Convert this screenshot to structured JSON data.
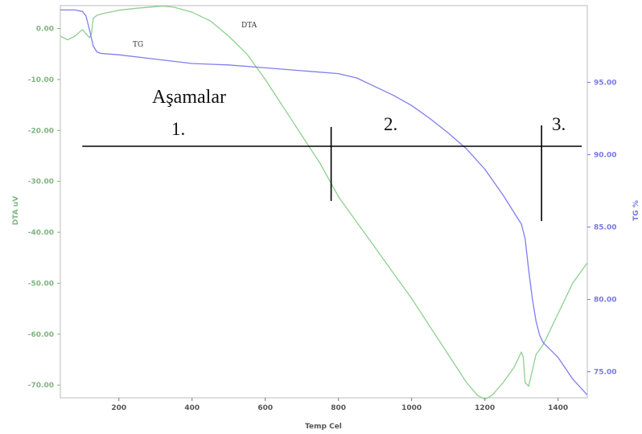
{
  "chart_data": {
    "type": "line",
    "title": "",
    "xlabel": "Temp Cel",
    "ylabel_left": "DTA uV",
    "ylabel_right": "TG %",
    "xlim": [
      40,
      1480
    ],
    "ylim_left": [
      -72.5,
      4.5
    ],
    "ylim_right": [
      73.2,
      100.3
    ],
    "x_ticks": [
      "200",
      "400",
      "600",
      "800",
      "1000",
      "1200",
      "1400"
    ],
    "y_left_ticks": [
      "0.00",
      "-10.00",
      "-20.00",
      "-30.00",
      "-40.00",
      "-50.00",
      "-60.00",
      "-70.00"
    ],
    "y_right_ticks": [
      "95.00",
      "90.00",
      "85.00",
      "80.00",
      "75.00"
    ],
    "series": [
      {
        "name": "DTA",
        "axis": "left",
        "color": "#8fcf8f",
        "x": [
          40,
          60,
          80,
          100,
          110,
          120,
          125,
          130,
          140,
          160,
          200,
          250,
          300,
          320,
          350,
          400,
          450,
          500,
          550,
          600,
          650,
          700,
          750,
          800,
          850,
          900,
          950,
          1000,
          1050,
          1100,
          1150,
          1180,
          1200,
          1220,
          1250,
          1280,
          1300,
          1305,
          1310,
          1320,
          1330,
          1340,
          1360,
          1400,
          1440,
          1480
        ],
        "y": [
          -1.5,
          -2.2,
          -1.5,
          -0.2,
          -1.0,
          -1.8,
          -1.0,
          2.0,
          2.6,
          3.0,
          3.6,
          4.0,
          4.3,
          4.4,
          4.2,
          3.2,
          1.5,
          -1.5,
          -5.0,
          -10.0,
          -15.5,
          -21.0,
          -26.5,
          -33.0,
          -38.0,
          -43.0,
          -48.0,
          -53.0,
          -58.5,
          -64.0,
          -69.5,
          -72.0,
          -72.8,
          -72.0,
          -69.5,
          -66.5,
          -63.5,
          -64.5,
          -69.5,
          -70.2,
          -67.0,
          -64.0,
          -62.0,
          -56.0,
          -50.0,
          -46.0
        ]
      },
      {
        "name": "TG",
        "axis": "right",
        "color": "#7e7ef0",
        "x": [
          40,
          80,
          100,
          110,
          120,
          130,
          140,
          150,
          200,
          300,
          400,
          500,
          600,
          700,
          800,
          850,
          900,
          950,
          1000,
          1050,
          1100,
          1150,
          1200,
          1250,
          1280,
          1300,
          1310,
          1320,
          1330,
          1340,
          1350,
          1360,
          1380,
          1400,
          1440,
          1480
        ],
        "y": [
          100.0,
          100.0,
          99.9,
          99.6,
          98.6,
          97.5,
          97.1,
          97.0,
          96.9,
          96.6,
          96.3,
          96.2,
          96.0,
          95.8,
          95.6,
          95.3,
          94.7,
          94.1,
          93.4,
          92.5,
          91.5,
          90.4,
          89.0,
          87.2,
          86.0,
          85.2,
          84.2,
          82.0,
          80.0,
          78.5,
          77.5,
          77.0,
          76.5,
          76.0,
          74.5,
          73.4
        ]
      }
    ],
    "annotations": {
      "title_text": "Aşamalar",
      "stage_labels": [
        "1.",
        "2.",
        "3."
      ],
      "stage_line_temp": [
        780,
        1355
      ],
      "stage_line_x_range": [
        100,
        1465
      ]
    }
  }
}
